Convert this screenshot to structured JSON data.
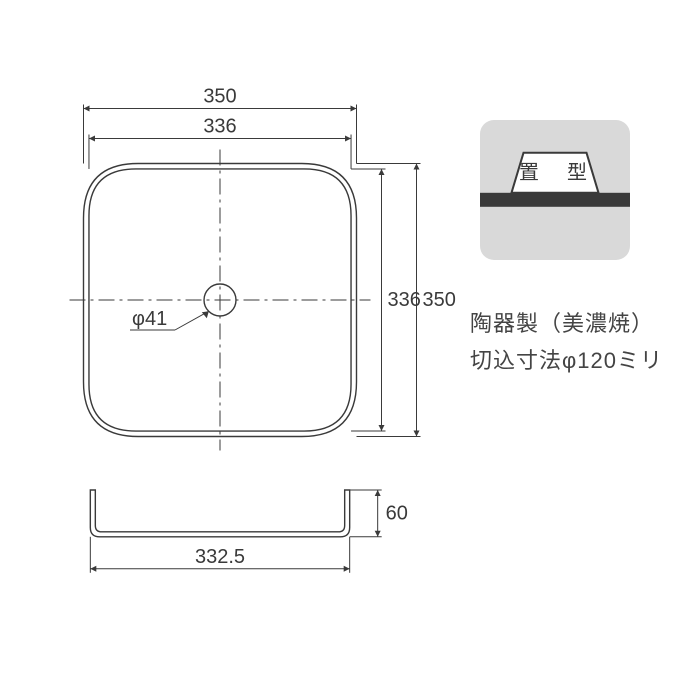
{
  "diagram": {
    "top_view": {
      "outer_width_label": "350",
      "inner_width_label": "336",
      "inner_height_label": "336",
      "outer_height_label": "350",
      "drain_diameter_label": "φ41",
      "outer_size": 350,
      "inner_size": 336,
      "drain_diameter": 41,
      "corner_radius_outer": 70,
      "corner_radius_inner": 60,
      "line_color": "#3a3a3a",
      "center_line_color": "#3a3a3a",
      "dim_line_color": "#3a3a3a",
      "stroke_width": 1.4,
      "font_size": 20
    },
    "side_view": {
      "width_label": "332.5",
      "height_label": "60",
      "width": 332.5,
      "height": 60,
      "corner_radius": 12,
      "line_color": "#3a3a3a",
      "stroke_width": 1.4,
      "font_size": 20
    },
    "badge": {
      "label": "置　型",
      "bg_color": "#d9d9d9",
      "stripe_color": "#3a3a3a",
      "text_color": "#3a3a3a",
      "corner_radius": 14,
      "size_w": 150,
      "size_h": 140,
      "font_size": 20
    },
    "info_lines": {
      "line1": "陶器製（美濃焼）",
      "line2": "切込寸法φ120ミリ",
      "text_color": "#444444",
      "font_size": 22
    },
    "canvas": {
      "bg": "#ffffff"
    }
  }
}
